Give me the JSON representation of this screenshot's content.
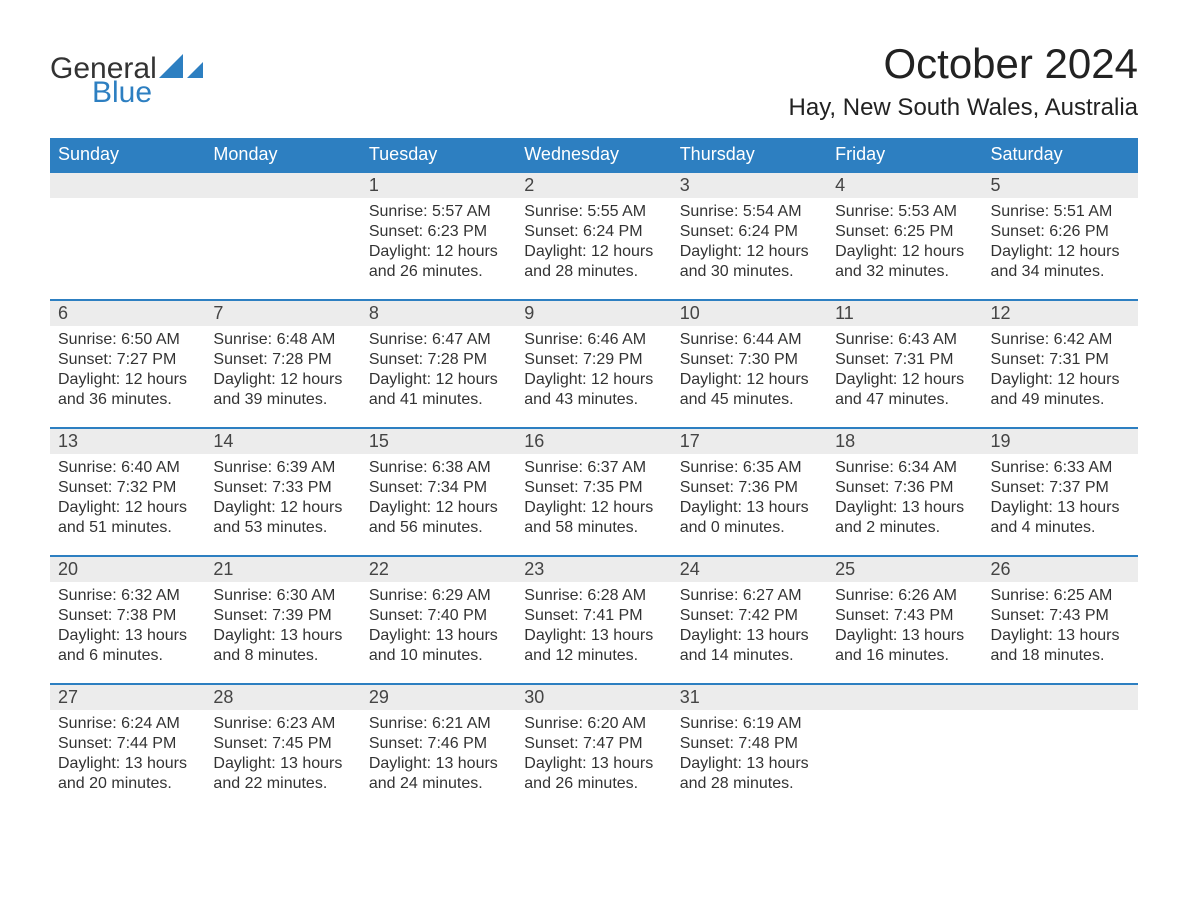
{
  "logo": {
    "text1": "General",
    "text2": "Blue",
    "shape_color": "#2d7fc1"
  },
  "title": "October 2024",
  "location": "Hay, New South Wales, Australia",
  "header_bg": "#2d7fc1",
  "header_fg": "#ffffff",
  "daynum_bg": "#ececec",
  "border_color": "#2d7fc1",
  "text_color": "#333333",
  "weekdays": [
    "Sunday",
    "Monday",
    "Tuesday",
    "Wednesday",
    "Thursday",
    "Friday",
    "Saturday"
  ],
  "weeks": [
    [
      null,
      null,
      {
        "day": "1",
        "sunrise": "5:57 AM",
        "sunset": "6:23 PM",
        "daylight": "12 hours and 26 minutes."
      },
      {
        "day": "2",
        "sunrise": "5:55 AM",
        "sunset": "6:24 PM",
        "daylight": "12 hours and 28 minutes."
      },
      {
        "day": "3",
        "sunrise": "5:54 AM",
        "sunset": "6:24 PM",
        "daylight": "12 hours and 30 minutes."
      },
      {
        "day": "4",
        "sunrise": "5:53 AM",
        "sunset": "6:25 PM",
        "daylight": "12 hours and 32 minutes."
      },
      {
        "day": "5",
        "sunrise": "5:51 AM",
        "sunset": "6:26 PM",
        "daylight": "12 hours and 34 minutes."
      }
    ],
    [
      {
        "day": "6",
        "sunrise": "6:50 AM",
        "sunset": "7:27 PM",
        "daylight": "12 hours and 36 minutes."
      },
      {
        "day": "7",
        "sunrise": "6:48 AM",
        "sunset": "7:28 PM",
        "daylight": "12 hours and 39 minutes."
      },
      {
        "day": "8",
        "sunrise": "6:47 AM",
        "sunset": "7:28 PM",
        "daylight": "12 hours and 41 minutes."
      },
      {
        "day": "9",
        "sunrise": "6:46 AM",
        "sunset": "7:29 PM",
        "daylight": "12 hours and 43 minutes."
      },
      {
        "day": "10",
        "sunrise": "6:44 AM",
        "sunset": "7:30 PM",
        "daylight": "12 hours and 45 minutes."
      },
      {
        "day": "11",
        "sunrise": "6:43 AM",
        "sunset": "7:31 PM",
        "daylight": "12 hours and 47 minutes."
      },
      {
        "day": "12",
        "sunrise": "6:42 AM",
        "sunset": "7:31 PM",
        "daylight": "12 hours and 49 minutes."
      }
    ],
    [
      {
        "day": "13",
        "sunrise": "6:40 AM",
        "sunset": "7:32 PM",
        "daylight": "12 hours and 51 minutes."
      },
      {
        "day": "14",
        "sunrise": "6:39 AM",
        "sunset": "7:33 PM",
        "daylight": "12 hours and 53 minutes."
      },
      {
        "day": "15",
        "sunrise": "6:38 AM",
        "sunset": "7:34 PM",
        "daylight": "12 hours and 56 minutes."
      },
      {
        "day": "16",
        "sunrise": "6:37 AM",
        "sunset": "7:35 PM",
        "daylight": "12 hours and 58 minutes."
      },
      {
        "day": "17",
        "sunrise": "6:35 AM",
        "sunset": "7:36 PM",
        "daylight": "13 hours and 0 minutes."
      },
      {
        "day": "18",
        "sunrise": "6:34 AM",
        "sunset": "7:36 PM",
        "daylight": "13 hours and 2 minutes."
      },
      {
        "day": "19",
        "sunrise": "6:33 AM",
        "sunset": "7:37 PM",
        "daylight": "13 hours and 4 minutes."
      }
    ],
    [
      {
        "day": "20",
        "sunrise": "6:32 AM",
        "sunset": "7:38 PM",
        "daylight": "13 hours and 6 minutes."
      },
      {
        "day": "21",
        "sunrise": "6:30 AM",
        "sunset": "7:39 PM",
        "daylight": "13 hours and 8 minutes."
      },
      {
        "day": "22",
        "sunrise": "6:29 AM",
        "sunset": "7:40 PM",
        "daylight": "13 hours and 10 minutes."
      },
      {
        "day": "23",
        "sunrise": "6:28 AM",
        "sunset": "7:41 PM",
        "daylight": "13 hours and 12 minutes."
      },
      {
        "day": "24",
        "sunrise": "6:27 AM",
        "sunset": "7:42 PM",
        "daylight": "13 hours and 14 minutes."
      },
      {
        "day": "25",
        "sunrise": "6:26 AM",
        "sunset": "7:43 PM",
        "daylight": "13 hours and 16 minutes."
      },
      {
        "day": "26",
        "sunrise": "6:25 AM",
        "sunset": "7:43 PM",
        "daylight": "13 hours and 18 minutes."
      }
    ],
    [
      {
        "day": "27",
        "sunrise": "6:24 AM",
        "sunset": "7:44 PM",
        "daylight": "13 hours and 20 minutes."
      },
      {
        "day": "28",
        "sunrise": "6:23 AM",
        "sunset": "7:45 PM",
        "daylight": "13 hours and 22 minutes."
      },
      {
        "day": "29",
        "sunrise": "6:21 AM",
        "sunset": "7:46 PM",
        "daylight": "13 hours and 24 minutes."
      },
      {
        "day": "30",
        "sunrise": "6:20 AM",
        "sunset": "7:47 PM",
        "daylight": "13 hours and 26 minutes."
      },
      {
        "day": "31",
        "sunrise": "6:19 AM",
        "sunset": "7:48 PM",
        "daylight": "13 hours and 28 minutes."
      },
      null,
      null
    ]
  ],
  "labels": {
    "sunrise": "Sunrise: ",
    "sunset": "Sunset: ",
    "daylight": "Daylight: "
  }
}
